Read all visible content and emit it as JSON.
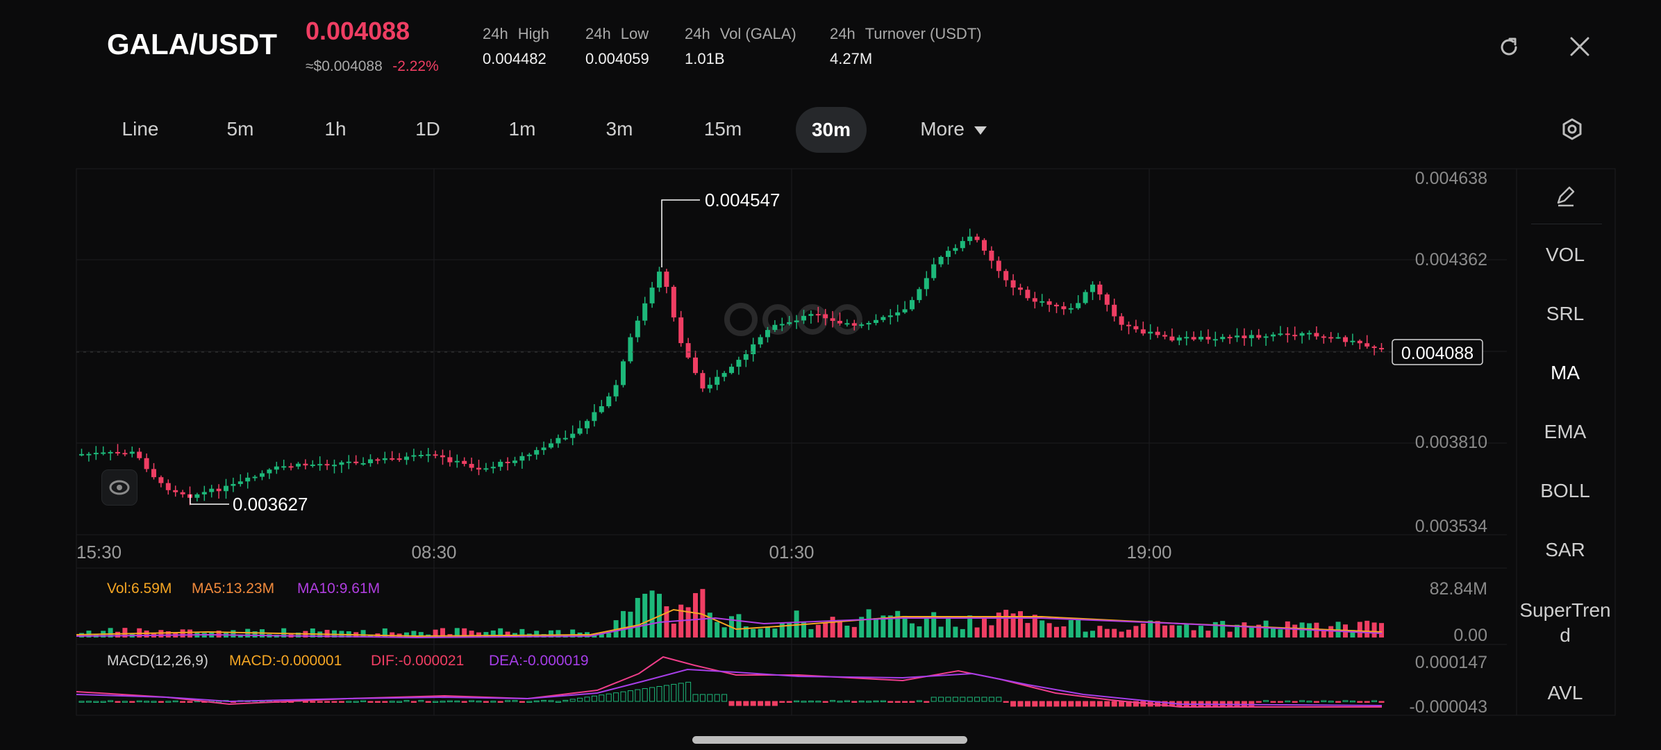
{
  "header": {
    "pair": "GALA/USDT",
    "price": "0.004088",
    "usd_price": "≈$0.004088",
    "change": "-2.22%",
    "stats": [
      {
        "label_a": "24h",
        "label_b": "High",
        "value": "0.004482"
      },
      {
        "label_a": "24h",
        "label_b": "Low",
        "value": "0.004059"
      },
      {
        "label_a": "24h",
        "label_b": "Vol (GALA)",
        "value": "1.01B"
      },
      {
        "label_a": "24h",
        "label_b": "Turnover (USDT)",
        "value": "4.27M"
      }
    ],
    "refresh_icon": "refresh-icon",
    "close_icon": "close-icon"
  },
  "timeframes": {
    "tabs": [
      "Line",
      "5m",
      "1h",
      "1D",
      "1m",
      "3m",
      "15m",
      "30m"
    ],
    "active": "30m",
    "more_label": "More",
    "settings_icon": "settings-icon"
  },
  "sidebar": {
    "edit_icon": "pencil-icon",
    "items": [
      "VOL",
      "SRL",
      "MA",
      "EMA",
      "BOLL",
      "SAR",
      "SuperTrend",
      "AVL"
    ],
    "active": "MA"
  },
  "chart": {
    "price_axis": [
      "0.004638",
      "0.004362",
      "0.003810",
      "0.003534"
    ],
    "current_price_label": "0.004088",
    "high_marker": "0.004547",
    "low_marker": "0.003627",
    "time_axis": [
      "15:30",
      "08:30",
      "01:30",
      "19:00"
    ]
  },
  "volume_panel": {
    "vol": "Vol:6.59M",
    "ma5": "MA5:13.23M",
    "ma10": "MA10:9.61M",
    "axis_top": "82.84M",
    "axis_bottom": "0.00"
  },
  "macd_panel": {
    "title": "MACD(12,26,9)",
    "macd": "MACD:-0.000001",
    "dif": "DIF:-0.000021",
    "dea": "DEA:-0.000019",
    "axis_top": "0.000147",
    "axis_bottom": "-0.000043"
  },
  "colors": {
    "up": "#1db87a",
    "down": "#ef3e63",
    "ma5": "#f5a623",
    "ma10": "#b03ee0",
    "dif": "#ef3e8a",
    "dea": "#a63ee8"
  }
}
